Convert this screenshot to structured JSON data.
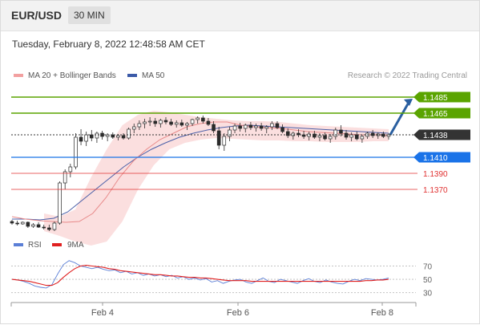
{
  "header": {
    "pair": "EUR/USD",
    "timeframe": "30 MIN",
    "datetime": "Tuesday, February 8, 2022 12:48:58 AM CET"
  },
  "legend": {
    "ma20": "MA 20 + Bollinger Bands",
    "ma50": "MA 50",
    "credit": "Research © 2022 Trading Central",
    "rsi": "RSI",
    "rsi_ma": "9MA"
  },
  "colors": {
    "bollinger": "#f8c4c4",
    "ma20": "#e88a8a",
    "ma50": "#4a5fa8",
    "candle": "#2a2a2a",
    "resistance": "#5aa400",
    "current": "#333333",
    "pivot": "#1a73e8",
    "support": "#e03030",
    "rsi": "#5b7fd6",
    "rsi_ma": "#e02020",
    "arrow": "#2a5fa0"
  },
  "chart_data": [
    {
      "type": "candlestick",
      "title": "EUR/USD 30 MIN",
      "x_ticks": [
        "Feb 4",
        "Feb 6",
        "Feb 8"
      ],
      "ylim": [
        1.1315,
        1.15
      ],
      "series_ohlc_approx": [
        [
          1.133,
          1.1332,
          1.1326,
          1.1328
        ],
        [
          1.1328,
          1.1331,
          1.1325,
          1.1327
        ],
        [
          1.1327,
          1.133,
          1.1326,
          1.1329
        ],
        [
          1.1329,
          1.133,
          1.1322,
          1.1324
        ],
        [
          1.1324,
          1.1328,
          1.1322,
          1.1326
        ],
        [
          1.1326,
          1.1329,
          1.1322,
          1.1323
        ],
        [
          1.1323,
          1.1326,
          1.132,
          1.1322
        ],
        [
          1.1322,
          1.1326,
          1.1318,
          1.132
        ],
        [
          1.132,
          1.133,
          1.1318,
          1.1328
        ],
        [
          1.1328,
          1.138,
          1.1326,
          1.1378
        ],
        [
          1.1378,
          1.1395,
          1.137,
          1.1392
        ],
        [
          1.1392,
          1.1402,
          1.1385,
          1.1398
        ],
        [
          1.1398,
          1.144,
          1.1395,
          1.1435
        ],
        [
          1.1435,
          1.1445,
          1.1425,
          1.143
        ],
        [
          1.143,
          1.1442,
          1.1424,
          1.1438
        ],
        [
          1.1438,
          1.1444,
          1.143,
          1.1434
        ],
        [
          1.1434,
          1.1442,
          1.1428,
          1.144
        ],
        [
          1.144,
          1.1443,
          1.1432,
          1.1436
        ],
        [
          1.1436,
          1.144,
          1.143,
          1.1438
        ],
        [
          1.1438,
          1.1441,
          1.1433,
          1.1435
        ],
        [
          1.1435,
          1.1439,
          1.1431,
          1.1437
        ],
        [
          1.1437,
          1.144,
          1.1432,
          1.1434
        ],
        [
          1.1434,
          1.1447,
          1.1432,
          1.1445
        ],
        [
          1.1445,
          1.1452,
          1.144,
          1.1448
        ],
        [
          1.1448,
          1.1456,
          1.1444,
          1.1452
        ],
        [
          1.1452,
          1.1458,
          1.1446,
          1.1454
        ],
        [
          1.1454,
          1.146,
          1.1449,
          1.1455
        ],
        [
          1.1455,
          1.1459,
          1.1448,
          1.1452
        ],
        [
          1.1452,
          1.1458,
          1.1447,
          1.1456
        ],
        [
          1.1456,
          1.146,
          1.1451,
          1.1454
        ],
        [
          1.1454,
          1.1458,
          1.1449,
          1.1451
        ],
        [
          1.1451,
          1.1456,
          1.1447,
          1.1453
        ],
        [
          1.1453,
          1.1457,
          1.1448,
          1.145
        ],
        [
          1.145,
          1.1454,
          1.1444,
          1.1452
        ],
        [
          1.1452,
          1.1458,
          1.1449,
          1.1457
        ],
        [
          1.1457,
          1.1461,
          1.1452,
          1.1459
        ],
        [
          1.1459,
          1.1462,
          1.1452,
          1.1455
        ],
        [
          1.1455,
          1.1459,
          1.1449,
          1.1451
        ],
        [
          1.1451,
          1.1455,
          1.144,
          1.1443
        ],
        [
          1.1443,
          1.1448,
          1.142,
          1.1425
        ],
        [
          1.1425,
          1.144,
          1.1418,
          1.1436
        ],
        [
          1.1436,
          1.1448,
          1.143,
          1.1444
        ],
        [
          1.1444,
          1.1452,
          1.144,
          1.1449
        ],
        [
          1.1449,
          1.1453,
          1.1442,
          1.1446
        ],
        [
          1.1446,
          1.1452,
          1.1441,
          1.145
        ],
        [
          1.145,
          1.1454,
          1.1444,
          1.1447
        ],
        [
          1.1447,
          1.1452,
          1.1442,
          1.1449
        ],
        [
          1.1449,
          1.1453,
          1.1443,
          1.1446
        ],
        [
          1.1446,
          1.145,
          1.144,
          1.1448
        ],
        [
          1.1448,
          1.1455,
          1.1444,
          1.1452
        ],
        [
          1.1452,
          1.1455,
          1.1445,
          1.1447
        ],
        [
          1.1447,
          1.1451,
          1.144,
          1.1442
        ],
        [
          1.1442,
          1.1446,
          1.1434,
          1.1437
        ],
        [
          1.1437,
          1.1442,
          1.1432,
          1.144
        ],
        [
          1.144,
          1.1445,
          1.1435,
          1.1438
        ],
        [
          1.1438,
          1.1443,
          1.1433,
          1.1436
        ],
        [
          1.1436,
          1.1442,
          1.1431,
          1.1439
        ],
        [
          1.1439,
          1.1443,
          1.1433,
          1.1435
        ],
        [
          1.1435,
          1.144,
          1.143,
          1.1437
        ],
        [
          1.1437,
          1.1441,
          1.1431,
          1.1433
        ],
        [
          1.1433,
          1.1439,
          1.1428,
          1.1436
        ],
        [
          1.1436,
          1.1447,
          1.1432,
          1.1444
        ],
        [
          1.1444,
          1.145,
          1.1436,
          1.144
        ],
        [
          1.144,
          1.1444,
          1.1432,
          1.1435
        ],
        [
          1.1435,
          1.1441,
          1.143,
          1.1438
        ],
        [
          1.1438,
          1.1442,
          1.1431,
          1.1433
        ],
        [
          1.1433,
          1.1438,
          1.1428,
          1.1436
        ],
        [
          1.1436,
          1.1442,
          1.1433,
          1.144
        ],
        [
          1.144,
          1.1444,
          1.1434,
          1.1437
        ],
        [
          1.1437,
          1.1441,
          1.1433,
          1.1439
        ],
        [
          1.1439,
          1.1442,
          1.1434,
          1.1436
        ],
        [
          1.1436,
          1.144,
          1.1432,
          1.1438
        ]
      ],
      "ma20": [
        1.1336,
        1.1333,
        1.1331,
        1.133,
        1.1329,
        1.133,
        1.134,
        1.136,
        1.1385,
        1.1405,
        1.142,
        1.1432,
        1.144,
        1.1448,
        1.1452,
        1.1454,
        1.1454,
        1.145,
        1.1448,
        1.1447,
        1.1446,
        1.1444,
        1.1442,
        1.1441,
        1.144,
        1.1439,
        1.1438,
        1.1438,
        1.1437
      ],
      "ma50": [
        1.1333,
        1.1333,
        1.1332,
        1.1334,
        1.1342,
        1.1356,
        1.137,
        1.1384,
        1.1398,
        1.141,
        1.142,
        1.1428,
        1.1435,
        1.144,
        1.1444,
        1.1447,
        1.1449,
        1.145,
        1.1449,
        1.1448,
        1.1447,
        1.1446,
        1.1445,
        1.1444,
        1.1443,
        1.1442,
        1.1441,
        1.144
      ],
      "bollinger_upper": [
        1.134,
        1.1336,
        1.1345,
        1.1385,
        1.142,
        1.145,
        1.1463,
        1.1468,
        1.1466,
        1.1463,
        1.146,
        1.1458,
        1.1456,
        1.1455,
        1.1455,
        1.1454,
        1.1452,
        1.145,
        1.1449,
        1.1448,
        1.1447,
        1.1446,
        1.1445
      ],
      "bollinger_lower": [
        1.1318,
        1.1312,
        1.1305,
        1.13,
        1.1305,
        1.133,
        1.137,
        1.14,
        1.142,
        1.1428,
        1.1432,
        1.1434,
        1.1433,
        1.1432,
        1.1431,
        1.1431,
        1.143,
        1.143,
        1.1429,
        1.1429,
        1.1429,
        1.143,
        1.143
      ],
      "levels": [
        {
          "label": "1.1485",
          "value": 1.1485,
          "kind": "resistance"
        },
        {
          "label": "1.1465",
          "value": 1.1465,
          "kind": "resistance"
        },
        {
          "label": "1.1438",
          "value": 1.1438,
          "kind": "current"
        },
        {
          "label": "1.1410",
          "value": 1.141,
          "kind": "pivot"
        },
        {
          "label": "1.1390",
          "value": 1.139,
          "kind": "support"
        },
        {
          "label": "1.1370",
          "value": 1.137,
          "kind": "support"
        }
      ]
    },
    {
      "type": "line",
      "title": "RSI",
      "series": [
        {
          "name": "RSI",
          "values": [
            50,
            49,
            47,
            44,
            40,
            38,
            37,
            42,
            58,
            72,
            78,
            75,
            70,
            68,
            66,
            68,
            65,
            63,
            64,
            60,
            62,
            58,
            60,
            56,
            58,
            55,
            57,
            54,
            56,
            52,
            54,
            50,
            52,
            49,
            51,
            46,
            48,
            44,
            47,
            49,
            50,
            46,
            44,
            48,
            52,
            47,
            45,
            50,
            48,
            46,
            44,
            48,
            51,
            47,
            45,
            49,
            46,
            44,
            43,
            47,
            50,
            48,
            51,
            50,
            49,
            50,
            52
          ]
        },
        {
          "name": "9MA",
          "values": [
            50,
            49,
            48,
            47,
            45,
            43,
            41,
            41,
            45,
            53,
            60,
            66,
            70,
            71,
            70,
            69,
            68,
            66,
            65,
            63,
            62,
            61,
            60,
            59,
            58,
            57,
            57,
            56,
            55,
            55,
            54,
            53,
            53,
            52,
            52,
            51,
            50,
            49,
            48,
            48,
            48,
            48,
            47,
            47,
            47,
            47,
            47,
            47,
            47,
            47,
            47,
            47,
            47,
            47,
            47,
            47,
            47,
            47,
            47,
            47,
            47,
            47,
            48,
            48,
            49,
            49,
            50
          ]
        }
      ],
      "y_ticks": [
        "70",
        "50",
        "30"
      ],
      "ylim": [
        20,
        85
      ]
    }
  ]
}
